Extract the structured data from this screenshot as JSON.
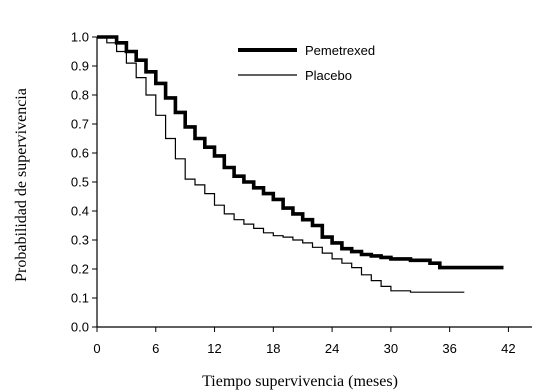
{
  "chart_data": {
    "type": "line",
    "xlabel": "Tiempo supervivencia (meses)",
    "ylabel": "Probabilidad de supervivencia",
    "xlim": [
      0,
      44
    ],
    "ylim": [
      0,
      1
    ],
    "xticks": [
      "0",
      "6",
      "12",
      "18",
      "24",
      "30",
      "36",
      "42"
    ],
    "yticks": [
      "0.0",
      "0.1",
      "0.2",
      "0.3",
      "0.4",
      "0.5",
      "0.6",
      "0.7",
      "0.8",
      "0.9",
      "1.0"
    ],
    "legend_position": "top-right",
    "series": [
      {
        "name": "Pemetrexed",
        "color": "#000000",
        "line_style": "thick",
        "points": [
          [
            0,
            1.0
          ],
          [
            1,
            1.0
          ],
          [
            2,
            0.98
          ],
          [
            3,
            0.95
          ],
          [
            4,
            0.92
          ],
          [
            5,
            0.88
          ],
          [
            6,
            0.84
          ],
          [
            7,
            0.79
          ],
          [
            8,
            0.74
          ],
          [
            9,
            0.69
          ],
          [
            10,
            0.65
          ],
          [
            11,
            0.62
          ],
          [
            12,
            0.59
          ],
          [
            13,
            0.55
          ],
          [
            14,
            0.52
          ],
          [
            15,
            0.5
          ],
          [
            16,
            0.48
          ],
          [
            17,
            0.46
          ],
          [
            18,
            0.44
          ],
          [
            19,
            0.41
          ],
          [
            20,
            0.39
          ],
          [
            21,
            0.37
          ],
          [
            22,
            0.35
          ],
          [
            23,
            0.31
          ],
          [
            24,
            0.29
          ],
          [
            25,
            0.27
          ],
          [
            26,
            0.26
          ],
          [
            27,
            0.25
          ],
          [
            28,
            0.245
          ],
          [
            29,
            0.24
          ],
          [
            30,
            0.235
          ],
          [
            32,
            0.23
          ],
          [
            34,
            0.22
          ],
          [
            35,
            0.205
          ],
          [
            38,
            0.205
          ],
          [
            41.5,
            0.205
          ]
        ]
      },
      {
        "name": "Placebo",
        "color": "#000000",
        "line_style": "thin",
        "points": [
          [
            0,
            1.0
          ],
          [
            1,
            0.98
          ],
          [
            2,
            0.95
          ],
          [
            3,
            0.91
          ],
          [
            4,
            0.86
          ],
          [
            5,
            0.8
          ],
          [
            6,
            0.73
          ],
          [
            7,
            0.65
          ],
          [
            8,
            0.58
          ],
          [
            9,
            0.51
          ],
          [
            10,
            0.49
          ],
          [
            11,
            0.46
          ],
          [
            12,
            0.42
          ],
          [
            13,
            0.39
          ],
          [
            14,
            0.37
          ],
          [
            15,
            0.355
          ],
          [
            16,
            0.34
          ],
          [
            17,
            0.325
          ],
          [
            18,
            0.315
          ],
          [
            19,
            0.31
          ],
          [
            20,
            0.3
          ],
          [
            21,
            0.29
          ],
          [
            22,
            0.275
          ],
          [
            23,
            0.255
          ],
          [
            24,
            0.235
          ],
          [
            25,
            0.22
          ],
          [
            26,
            0.205
          ],
          [
            27,
            0.18
          ],
          [
            28,
            0.16
          ],
          [
            29,
            0.14
          ],
          [
            30,
            0.125
          ],
          [
            32,
            0.12
          ],
          [
            34,
            0.12
          ],
          [
            36,
            0.12
          ],
          [
            37.5,
            0.12
          ]
        ]
      }
    ]
  }
}
